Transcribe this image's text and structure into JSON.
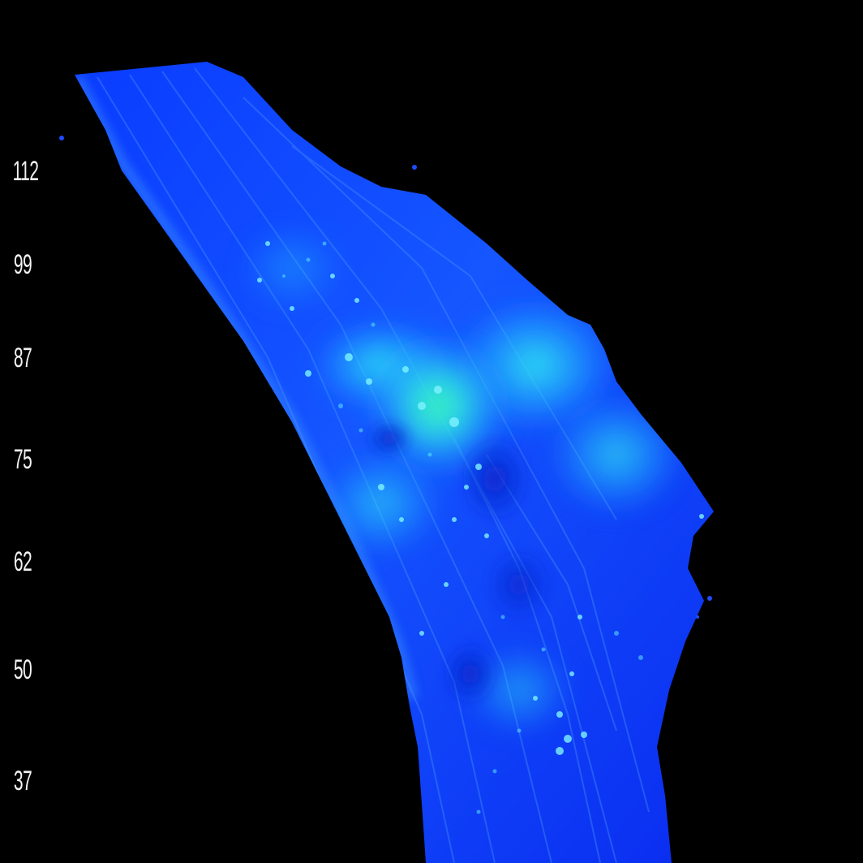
{
  "image": {
    "kind": "fluorescence microscopy of a single cell",
    "colormap": [
      "#0a2cff",
      "#1f6bff",
      "#27c8ff",
      "#35f0e8",
      "#2fe07a"
    ]
  },
  "depth_scale": {
    "ticks": [
      "112",
      "99",
      "87",
      "75",
      "62",
      "50",
      "37"
    ]
  }
}
